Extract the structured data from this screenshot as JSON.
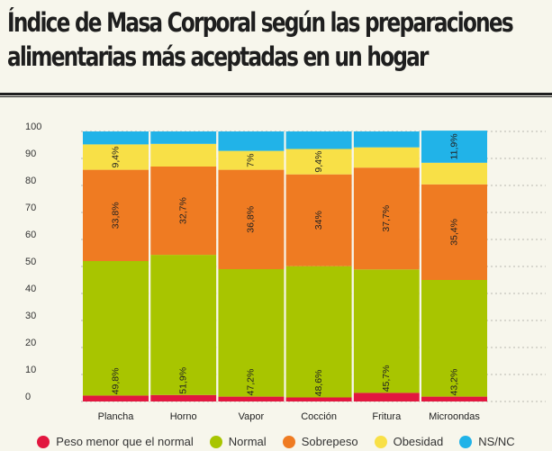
{
  "title": "Índice de Masa Corporal según las preparaciones alimentarias más aceptadas en un hogar",
  "chart_data": {
    "type": "bar",
    "stacked": true,
    "title": "Índice de Masa Corporal según las preparaciones alimentarias más aceptadas en un hogar",
    "xlabel": "",
    "ylabel": "",
    "ylim": [
      0,
      100
    ],
    "yticks": [
      0,
      10,
      20,
      30,
      40,
      50,
      60,
      70,
      80,
      90,
      100
    ],
    "grid": true,
    "legend_position": "bottom",
    "categories": [
      "Plancha",
      "Horno",
      "Vapor",
      "Cocción",
      "Fritura",
      "Microondas"
    ],
    "series": [
      {
        "name": "Peso menor que el normal",
        "color": "#e2173f",
        "values": [
          2.2,
          2.4,
          1.8,
          1.5,
          3.2,
          1.8
        ],
        "labels": [
          "",
          "",
          "",
          "",
          "",
          ""
        ]
      },
      {
        "name": "Normal",
        "color": "#a8c500",
        "values": [
          49.8,
          51.9,
          47.2,
          48.6,
          45.7,
          43.2
        ],
        "labels": [
          "49,8%",
          "51,9%",
          "47,2%",
          "48,6%",
          "45,7%",
          "43,2%"
        ]
      },
      {
        "name": "Sobrepeso",
        "color": "#ef7b22",
        "values": [
          33.8,
          32.7,
          36.8,
          34.0,
          37.7,
          35.4
        ],
        "labels": [
          "33,8%",
          "32,7%",
          "36,8%",
          "34%",
          "37,7%",
          "35,4%"
        ]
      },
      {
        "name": "Obesidad",
        "color": "#f8e047",
        "values": [
          9.4,
          8.4,
          7.0,
          9.4,
          7.5,
          8.0
        ],
        "labels": [
          "9,4%",
          "",
          "7%",
          "9,4%",
          "",
          ""
        ]
      },
      {
        "name": "NS/NC",
        "color": "#21b3e8",
        "values": [
          4.8,
          4.6,
          7.2,
          6.5,
          5.9,
          11.9
        ],
        "labels": [
          "",
          "",
          "",
          "",
          "",
          "11,9%"
        ]
      }
    ]
  }
}
